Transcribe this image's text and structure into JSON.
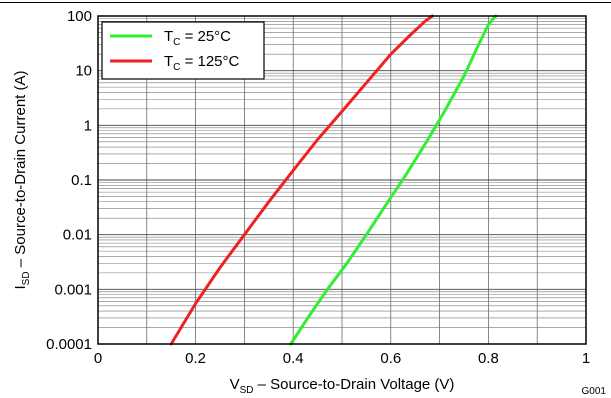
{
  "chart_data": {
    "type": "line",
    "xlabel": {
      "main": "V",
      "sub": "SD",
      "rest": " – Source-to-Drain Voltage (V)"
    },
    "ylabel": {
      "main": "I",
      "sub": "SD",
      "rest": " – Source-to-Drain Current (A)"
    },
    "xlim": [
      0,
      1
    ],
    "ylim": [
      0.0001,
      100
    ],
    "yscale": "log",
    "x_ticks": [
      {
        "v": 0,
        "label": "0"
      },
      {
        "v": 0.2,
        "label": "0.2"
      },
      {
        "v": 0.4,
        "label": "0.4"
      },
      {
        "v": 0.6,
        "label": "0.6"
      },
      {
        "v": 0.8,
        "label": "0.8"
      },
      {
        "v": 1,
        "label": "1"
      }
    ],
    "y_ticks": [
      {
        "v": 0.0001,
        "label": "0.0001"
      },
      {
        "v": 0.001,
        "label": "0.001"
      },
      {
        "v": 0.01,
        "label": "0.01"
      },
      {
        "v": 0.1,
        "label": "0.1"
      },
      {
        "v": 1,
        "label": "1"
      },
      {
        "v": 10,
        "label": "10"
      },
      {
        "v": 100,
        "label": "100"
      }
    ],
    "grid": true,
    "legend_position": "top-left",
    "series": [
      {
        "name": {
          "main": "T",
          "sub": "C",
          "rest": " = 25°C"
        },
        "color": "#33ee33",
        "x": [
          0.395,
          0.43,
          0.47,
          0.51,
          0.55,
          0.59,
          0.63,
          0.67,
          0.71,
          0.75,
          0.78,
          0.8,
          0.815
        ],
        "y": [
          0.0001,
          0.0003,
          0.001,
          0.003,
          0.01,
          0.035,
          0.12,
          0.45,
          1.8,
          8,
          30,
          70,
          100
        ]
      },
      {
        "name": {
          "main": "T",
          "sub": "C",
          "rest": " = 125°C"
        },
        "color": "#ee2222",
        "x": [
          0.15,
          0.2,
          0.25,
          0.3,
          0.35,
          0.4,
          0.45,
          0.5,
          0.55,
          0.6,
          0.64,
          0.67,
          0.685
        ],
        "y": [
          0.0001,
          0.00055,
          0.0025,
          0.01,
          0.04,
          0.15,
          0.55,
          1.8,
          6,
          20,
          45,
          80,
          100
        ]
      }
    ]
  },
  "figure_id": "G001"
}
